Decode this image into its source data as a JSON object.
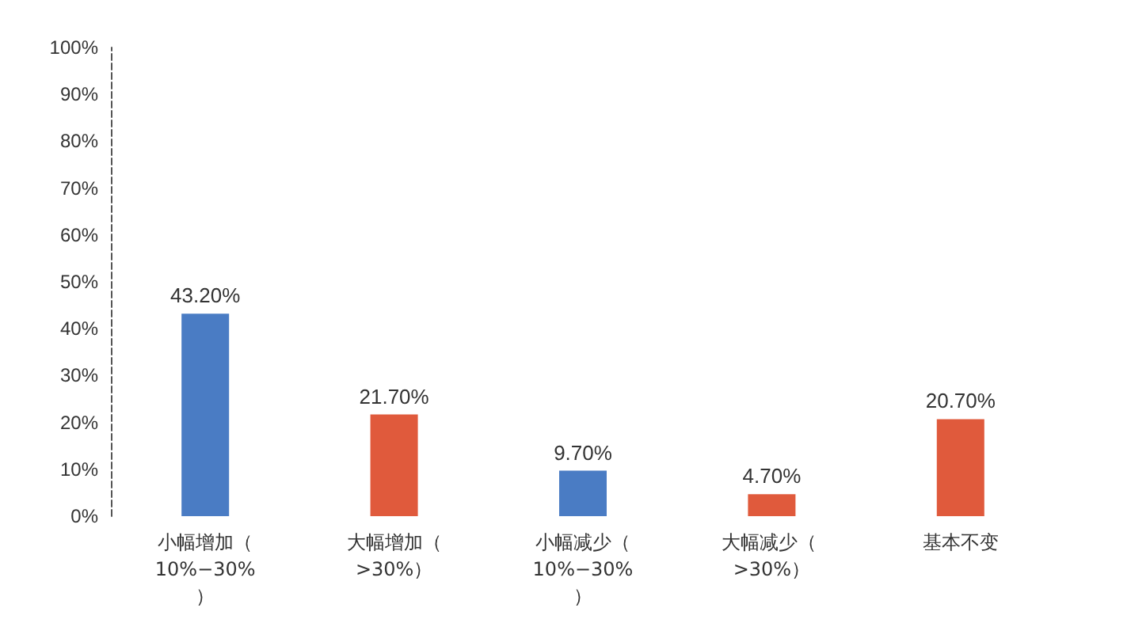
{
  "chart_data": {
    "type": "bar",
    "categories": [
      "小幅增加（10%−30%）",
      "大幅增加（>30%）",
      "小幅减少（10%−30%）",
      "大幅减少（ >30%）",
      "基本不变"
    ],
    "values": [
      43.2,
      21.7,
      9.7,
      4.7,
      20.7
    ],
    "value_labels": [
      "43.20%",
      "21.70%",
      "9.70%",
      "4.70%",
      "20.70%"
    ],
    "colors": [
      "#4a7cc4",
      "#e05a3c",
      "#4a7cc4",
      "#e05a3c",
      "#e05a3c"
    ],
    "ylim": [
      0,
      100
    ],
    "yticks": [
      {
        "value": 0,
        "label": "0%"
      },
      {
        "value": 10,
        "label": "10%"
      },
      {
        "value": 20,
        "label": "20%"
      },
      {
        "value": 30,
        "label": "30%"
      },
      {
        "value": 40,
        "label": "40%"
      },
      {
        "value": 50,
        "label": "50%"
      },
      {
        "value": 60,
        "label": "60%"
      },
      {
        "value": 70,
        "label": "70%"
      },
      {
        "value": 80,
        "label": "80%"
      },
      {
        "value": 90,
        "label": "90%"
      },
      {
        "value": 100,
        "label": "100%"
      }
    ],
    "grid": false
  }
}
